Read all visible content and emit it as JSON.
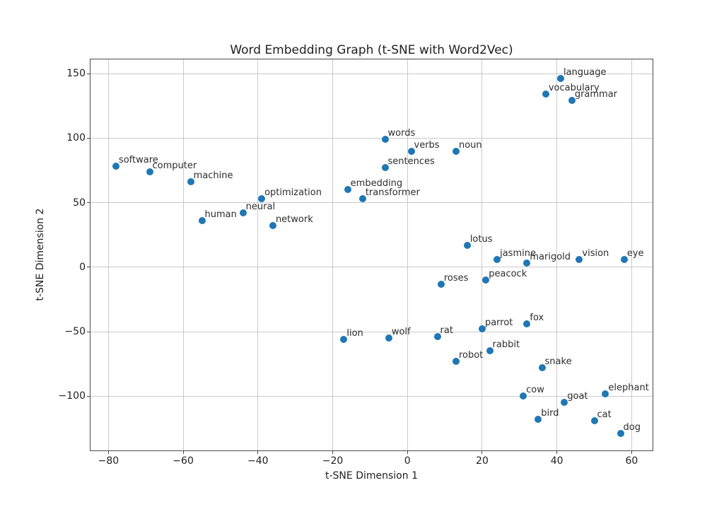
{
  "chart_data": {
    "type": "scatter",
    "title": "Word Embedding Graph (t-SNE with Word2Vec)",
    "xlabel": "t-SNE Dimension 1",
    "ylabel": "t-SNE Dimension 2",
    "xlim": [
      -84.8,
      65.6
    ],
    "ylim": [
      -142,
      161
    ],
    "xticks": [
      -80,
      -60,
      -40,
      -20,
      0,
      20,
      40,
      60
    ],
    "yticks": [
      150,
      100,
      50,
      0,
      -50,
      -100
    ],
    "grid": true,
    "legend": "none",
    "marker_color": "#1f77b4",
    "grid_color": "#cacaca",
    "points": [
      {
        "label": "software",
        "x": -78,
        "y": 78
      },
      {
        "label": "computer",
        "x": -69,
        "y": 74
      },
      {
        "label": "machine",
        "x": -58,
        "y": 66
      },
      {
        "label": "human",
        "x": -55,
        "y": 36
      },
      {
        "label": "neural",
        "x": -44,
        "y": 42
      },
      {
        "label": "optimization",
        "x": -39,
        "y": 53
      },
      {
        "label": "network",
        "x": -36,
        "y": 32
      },
      {
        "label": "embedding",
        "x": -16,
        "y": 60
      },
      {
        "label": "transformer",
        "x": -12,
        "y": 53
      },
      {
        "label": "words",
        "x": -6,
        "y": 99
      },
      {
        "label": "sentences",
        "x": -6,
        "y": 77
      },
      {
        "label": "verbs",
        "x": 1,
        "y": 90
      },
      {
        "label": "noun",
        "x": 13,
        "y": 90
      },
      {
        "label": "vocabulary",
        "x": 37,
        "y": 134
      },
      {
        "label": "language",
        "x": 41,
        "y": 146
      },
      {
        "label": "grammar",
        "x": 44,
        "y": 129
      },
      {
        "label": "lotus",
        "x": 16,
        "y": 17
      },
      {
        "label": "jasmine",
        "x": 24,
        "y": 6
      },
      {
        "label": "marigold",
        "x": 32,
        "y": 3
      },
      {
        "label": "vision",
        "x": 46,
        "y": 6
      },
      {
        "label": "eye",
        "x": 58,
        "y": 6
      },
      {
        "label": "roses",
        "x": 9,
        "y": -13
      },
      {
        "label": "peacock",
        "x": 21,
        "y": -10
      },
      {
        "label": "lion",
        "x": -17,
        "y": -56
      },
      {
        "label": "wolf",
        "x": -5,
        "y": -55
      },
      {
        "label": "rat",
        "x": 8,
        "y": -54
      },
      {
        "label": "parrot",
        "x": 20,
        "y": -48
      },
      {
        "label": "fox",
        "x": 32,
        "y": -44
      },
      {
        "label": "rabbit",
        "x": 22,
        "y": -65
      },
      {
        "label": "robot",
        "x": 13,
        "y": -73
      },
      {
        "label": "snake",
        "x": 36,
        "y": -78
      },
      {
        "label": "cow",
        "x": 31,
        "y": -100
      },
      {
        "label": "goat",
        "x": 42,
        "y": -105
      },
      {
        "label": "elephant",
        "x": 53,
        "y": -98
      },
      {
        "label": "bird",
        "x": 35,
        "y": -118
      },
      {
        "label": "cat",
        "x": 50,
        "y": -119
      },
      {
        "label": "dog",
        "x": 57,
        "y": -129
      }
    ]
  }
}
